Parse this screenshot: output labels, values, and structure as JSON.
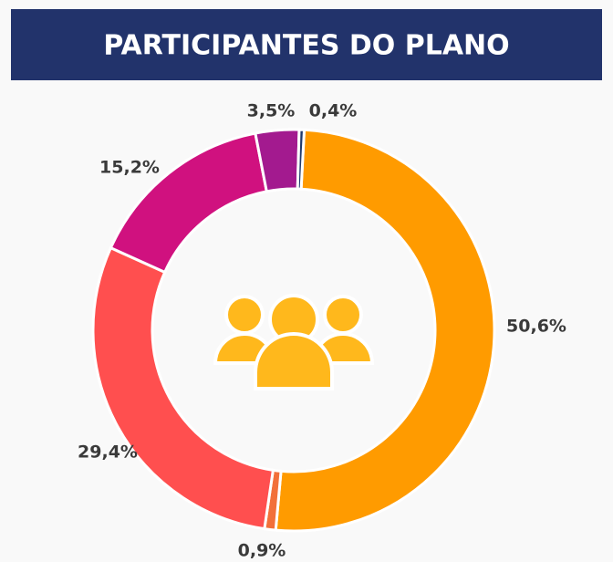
{
  "chart_data": {
    "type": "donut",
    "title": "PARTICIPANTES DO PLANO",
    "categories": [
      null,
      null,
      null,
      null,
      null,
      null
    ],
    "values": [
      50.6,
      0.9,
      29.4,
      15.2,
      3.5,
      0.4
    ],
    "value_labels": [
      "50,6%",
      "0,9%",
      "29,4%",
      "15,2%",
      "3,5%",
      "0,4%"
    ],
    "colors": [
      "#ff9b00",
      "#f2703a",
      "#ff4f4f",
      "#d0117f",
      "#a31a8f",
      "#1f3a6e"
    ]
  }
}
